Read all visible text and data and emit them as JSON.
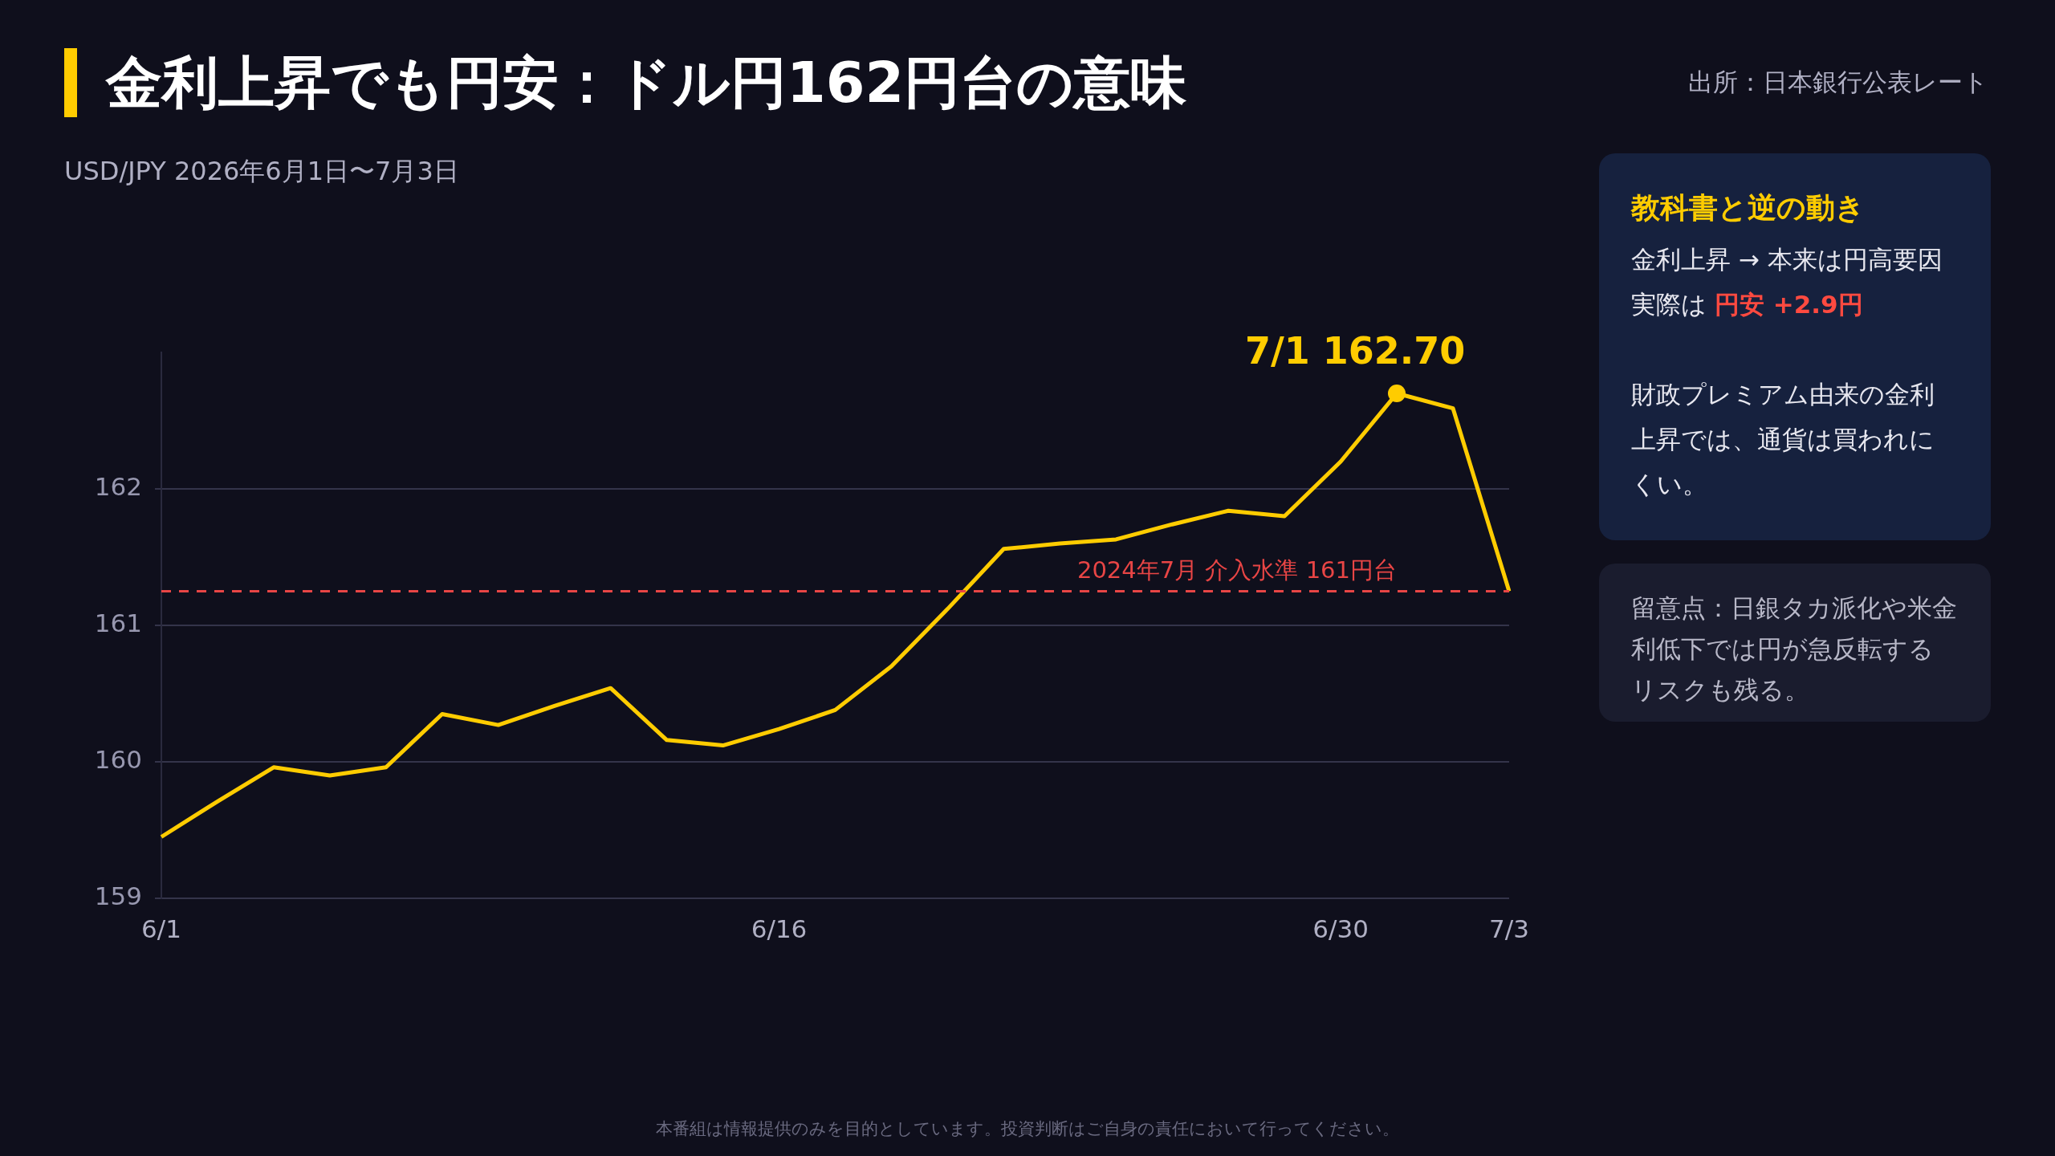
{
  "chart_data": {
    "type": "line",
    "title": "金利上昇でも円安：ドル円162円台の意味",
    "subtitle": "USD/JPY 2026年6月1日〜7月3日",
    "categories": [
      "6/1",
      null,
      null,
      null,
      null,
      null,
      null,
      null,
      null,
      null,
      null,
      "6/16",
      null,
      null,
      null,
      null,
      null,
      null,
      null,
      null,
      null,
      "6/30",
      null,
      null,
      "7/3"
    ],
    "series": [
      {
        "color": "#ffcc00",
        "values": [
          159.45,
          159.71,
          159.96,
          159.9,
          159.96,
          160.35,
          160.27,
          160.41,
          160.54,
          160.16,
          160.12,
          160.24,
          160.38,
          160.7,
          161.12,
          161.56,
          161.6,
          161.63,
          161.74,
          161.84,
          161.8,
          162.2,
          162.7,
          162.59,
          161.25
        ]
      }
    ],
    "ylim": [
      159,
      163
    ],
    "yticks": [
      159,
      160,
      161,
      162
    ],
    "grid": "y",
    "legend": false,
    "marker": "none",
    "line_style": "solid",
    "ref_lines": [
      {
        "axis": "y",
        "value": 161.25,
        "label": "2024年7月 介入水準 161円台",
        "color": "#e84545",
        "line_style": "dashed"
      }
    ],
    "annotations": [
      "出所：日本銀行公表レート",
      "本番組は情報提供のみを目的としています。投資判断はご自身の責任において行ってください。",
      "教科書と逆の動き",
      "金利上昇 → 本来は円高要因",
      "実際は",
      "円安 +2.9円",
      "財政プレミアム由来の金利上昇では、通貨は買われにくい。",
      "留意点：日銀タカ派化や米金利低下では円が急反転するリスクも残る。",
      "7/1 162.70"
    ]
  }
}
